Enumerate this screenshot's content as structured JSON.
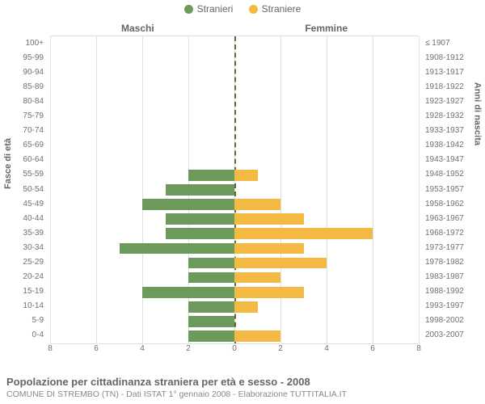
{
  "chart": {
    "type": "population-pyramid",
    "background_color": "#ffffff",
    "grid_color": "#e0e0e0",
    "center_line_color": "#666633",
    "text_color": "#666666",
    "font_family": "Arial",
    "tick_fontsize": 10,
    "heading_fontsize": 12,
    "title_fontsize": 13,
    "subtitle_fontsize": 10.5,
    "bar_gap_ratio": 0.24,
    "legend": {
      "items": [
        {
          "label": "Stranieri",
          "color": "#6c9a5a"
        },
        {
          "label": "Straniere",
          "color": "#f4b942"
        }
      ]
    },
    "side_headings": {
      "left": "Maschi",
      "right": "Femmine"
    },
    "left_axis_title": "Fasce di età",
    "right_axis_title": "Anni di nascita",
    "x_axis": {
      "max": 8,
      "ticks": [
        8,
        6,
        4,
        2,
        0,
        2,
        4,
        6,
        8
      ]
    },
    "series_colors": {
      "male": "#6c9a5a",
      "female": "#f4b942"
    },
    "age_bands": [
      {
        "label": "0-4",
        "birth": "2003-2007",
        "male": 2,
        "female": 2
      },
      {
        "label": "5-9",
        "birth": "1998-2002",
        "male": 2,
        "female": 0
      },
      {
        "label": "10-14",
        "birth": "1993-1997",
        "male": 2,
        "female": 1
      },
      {
        "label": "15-19",
        "birth": "1988-1992",
        "male": 4,
        "female": 3
      },
      {
        "label": "20-24",
        "birth": "1983-1987",
        "male": 2,
        "female": 2
      },
      {
        "label": "25-29",
        "birth": "1978-1982",
        "male": 2,
        "female": 4
      },
      {
        "label": "30-34",
        "birth": "1973-1977",
        "male": 5,
        "female": 3
      },
      {
        "label": "35-39",
        "birth": "1968-1972",
        "male": 3,
        "female": 6
      },
      {
        "label": "40-44",
        "birth": "1963-1967",
        "male": 3,
        "female": 3
      },
      {
        "label": "45-49",
        "birth": "1958-1962",
        "male": 4,
        "female": 2
      },
      {
        "label": "50-54",
        "birth": "1953-1957",
        "male": 3,
        "female": 0
      },
      {
        "label": "55-59",
        "birth": "1948-1952",
        "male": 2,
        "female": 1
      },
      {
        "label": "60-64",
        "birth": "1943-1947",
        "male": 0,
        "female": 0
      },
      {
        "label": "65-69",
        "birth": "1938-1942",
        "male": 0,
        "female": 0
      },
      {
        "label": "70-74",
        "birth": "1933-1937",
        "male": 0,
        "female": 0
      },
      {
        "label": "75-79",
        "birth": "1928-1932",
        "male": 0,
        "female": 0
      },
      {
        "label": "80-84",
        "birth": "1923-1927",
        "male": 0,
        "female": 0
      },
      {
        "label": "85-89",
        "birth": "1918-1922",
        "male": 0,
        "female": 0
      },
      {
        "label": "90-94",
        "birth": "1913-1917",
        "male": 0,
        "female": 0
      },
      {
        "label": "95-99",
        "birth": "1908-1912",
        "male": 0,
        "female": 0
      },
      {
        "label": "100+",
        "birth": "≤ 1907",
        "male": 0,
        "female": 0
      }
    ]
  },
  "footer": {
    "title": "Popolazione per cittadinanza straniera per età e sesso - 2008",
    "subtitle": "COMUNE DI STREMBO (TN) - Dati ISTAT 1° gennaio 2008 - Elaborazione TUTTITALIA.IT"
  }
}
